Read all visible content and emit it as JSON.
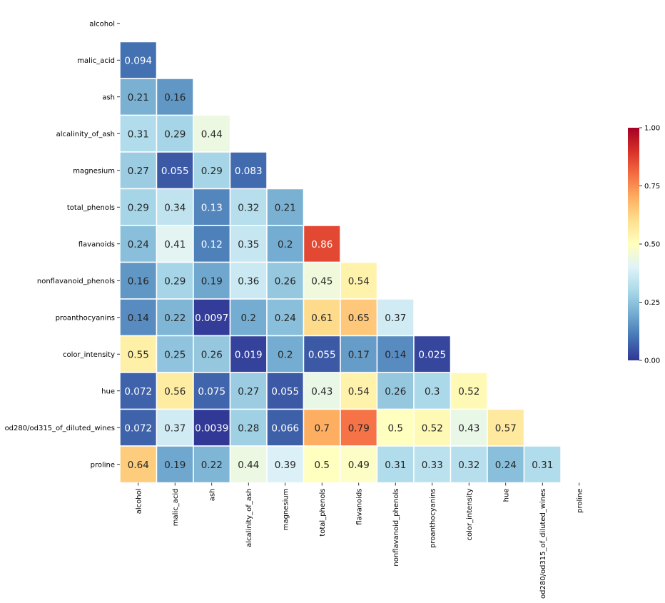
{
  "chart_data": {
    "type": "heatmap",
    "title": "",
    "xlabel": "",
    "ylabel": "",
    "mask": "upper-triangle-including-diagonal",
    "labels": [
      "alcohol",
      "malic_acid",
      "ash",
      "alcalinity_of_ash",
      "magnesium",
      "total_phenols",
      "flavanoids",
      "nonflavanoid_phenols",
      "proanthocyanins",
      "color_intensity",
      "hue",
      "od280/od315_of_diluted_wines",
      "proline"
    ],
    "values": [
      [],
      [
        "0.094"
      ],
      [
        "0.21",
        "0.16"
      ],
      [
        "0.31",
        "0.29",
        "0.44"
      ],
      [
        "0.27",
        "0.055",
        "0.29",
        "0.083"
      ],
      [
        "0.29",
        "0.34",
        "0.13",
        "0.32",
        "0.21"
      ],
      [
        "0.24",
        "0.41",
        "0.12",
        "0.35",
        "0.2",
        "0.86"
      ],
      [
        "0.16",
        "0.29",
        "0.19",
        "0.36",
        "0.26",
        "0.45",
        "0.54"
      ],
      [
        "0.14",
        "0.22",
        "0.0097",
        "0.2",
        "0.24",
        "0.61",
        "0.65",
        "0.37"
      ],
      [
        "0.55",
        "0.25",
        "0.26",
        "0.019",
        "0.2",
        "0.055",
        "0.17",
        "0.14",
        "0.025"
      ],
      [
        "0.072",
        "0.56",
        "0.075",
        "0.27",
        "0.055",
        "0.43",
        "0.54",
        "0.26",
        "0.3",
        "0.52"
      ],
      [
        "0.072",
        "0.37",
        "0.0039",
        "0.28",
        "0.066",
        "0.7",
        "0.79",
        "0.5",
        "0.52",
        "0.43",
        "0.57"
      ],
      [
        "0.64",
        "0.19",
        "0.22",
        "0.44",
        "0.39",
        "0.5",
        "0.49",
        "0.31",
        "0.33",
        "0.32",
        "0.24",
        "0.31"
      ]
    ],
    "colorbar": {
      "range": [
        0,
        1
      ],
      "ticks": [
        "0.00",
        "0.25",
        "0.50",
        "0.75",
        "1.00"
      ],
      "colormap": "RdYlBu_r",
      "colormap_stops": [
        "#313695",
        "#4575b4",
        "#74add1",
        "#abd9e9",
        "#e0f3f8",
        "#ffffbf",
        "#fee090",
        "#fdae61",
        "#f46d43",
        "#d73027",
        "#a50026"
      ]
    },
    "cell_border_color": "#ffffff"
  }
}
